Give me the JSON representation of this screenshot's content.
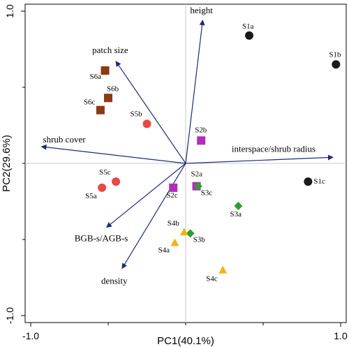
{
  "chart_data": {
    "type": "scatter",
    "title": "",
    "xlabel": "PC1(40.1%)",
    "ylabel": "PC2(29.6%)",
    "xlim": [
      -1.0,
      1.0
    ],
    "ylim": [
      -1.0,
      1.0
    ],
    "x_ticks": [
      "-1.0",
      "1.0"
    ],
    "y_ticks": [
      "1.0",
      "-1.0"
    ],
    "grid": false,
    "vectors": [
      {
        "label": "height",
        "x": 0.11,
        "y": 0.94
      },
      {
        "label": "patch size",
        "x": -0.45,
        "y": 0.67
      },
      {
        "label": "shrub cover",
        "x": -0.93,
        "y": 0.11
      },
      {
        "label": "interspace/shrub radius",
        "x": 0.95,
        "y": 0.04
      },
      {
        "label": "BGB-s/AGB-s",
        "x": -0.51,
        "y": -0.42
      },
      {
        "label": "density",
        "x": -0.41,
        "y": -0.69
      }
    ],
    "points": [
      {
        "label": "S1a",
        "group": "S1",
        "x": 0.41,
        "y": 0.84
      },
      {
        "label": "S1b",
        "group": "S1",
        "x": 0.97,
        "y": 0.65
      },
      {
        "label": "S1c",
        "group": "S1",
        "x": 0.79,
        "y": -0.12
      },
      {
        "label": "S2a",
        "group": "S2",
        "x": 0.07,
        "y": -0.15
      },
      {
        "label": "S2b",
        "group": "S2",
        "x": 0.1,
        "y": 0.15
      },
      {
        "label": "S2c",
        "group": "S2",
        "x": -0.08,
        "y": -0.16
      },
      {
        "label": "S3a",
        "group": "S3",
        "x": 0.34,
        "y": -0.28
      },
      {
        "label": "S3b",
        "group": "S3",
        "x": 0.03,
        "y": -0.46
      },
      {
        "label": "S3c",
        "group": "S3",
        "x": 0.08,
        "y": -0.15
      },
      {
        "label": "S4a",
        "group": "S4",
        "x": -0.07,
        "y": -0.52
      },
      {
        "label": "S4b",
        "group": "S4",
        "x": -0.01,
        "y": -0.45
      },
      {
        "label": "S4c",
        "group": "S4",
        "x": 0.24,
        "y": -0.7
      },
      {
        "label": "S5a",
        "group": "S5",
        "x": -0.54,
        "y": -0.16
      },
      {
        "label": "S5b",
        "group": "S5",
        "x": -0.25,
        "y": 0.26
      },
      {
        "label": "S5c",
        "group": "S5",
        "x": -0.45,
        "y": -0.12
      },
      {
        "label": "S6a",
        "group": "S6",
        "x": -0.52,
        "y": 0.61
      },
      {
        "label": "S6b",
        "group": "S6",
        "x": -0.5,
        "y": 0.43
      },
      {
        "label": "S6c",
        "group": "S6",
        "x": -0.55,
        "y": 0.35
      }
    ],
    "groups": {
      "S1": {
        "marker": "circle",
        "color": "#1a1a1a"
      },
      "S2": {
        "marker": "square",
        "color": "#b02fb8"
      },
      "S3": {
        "marker": "diamond",
        "color": "#2e9e2e"
      },
      "S4": {
        "marker": "triangle",
        "color": "#f2b21a"
      },
      "S5": {
        "marker": "circle",
        "color": "#e84848"
      },
      "S6": {
        "marker": "square",
        "color": "#8b3a12"
      }
    },
    "vector_color": "#1f2a78",
    "zero_line_color": "#c8c8c8"
  }
}
